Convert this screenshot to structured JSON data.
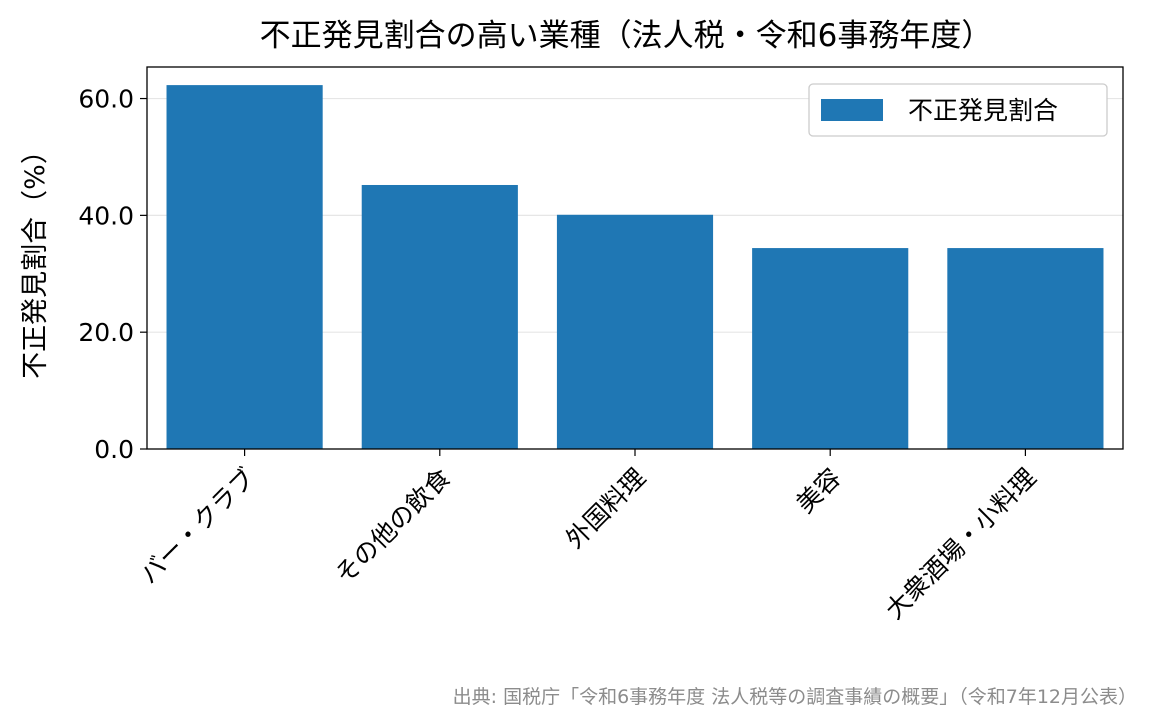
{
  "chart_data": {
    "type": "bar",
    "title": "不正発見割合の高い業種（法人税・令和6事務年度）",
    "ylabel": "不正発見割合（%）",
    "xlabel": "",
    "categories": [
      "バー・クラブ",
      "その他の飲食",
      "外国料理",
      "美容",
      "大衆酒場・小料理"
    ],
    "series": [
      {
        "name": "不正発見割合",
        "values": [
          62.3,
          45.2,
          40.1,
          34.4,
          34.4
        ]
      }
    ],
    "ylim": [
      0,
      65.4
    ],
    "yticks": [
      "0.0",
      "20.0",
      "40.0",
      "60.0"
    ],
    "ytick_values": [
      0,
      20,
      40,
      60
    ],
    "grid": "horizontal",
    "legend_position": "top-right",
    "colors": {
      "bar": "#1f77b4"
    },
    "source_note": "出典: 国税庁「令和6事務年度 法人税等の調査事績の概要」（令和7年12月公表）"
  }
}
